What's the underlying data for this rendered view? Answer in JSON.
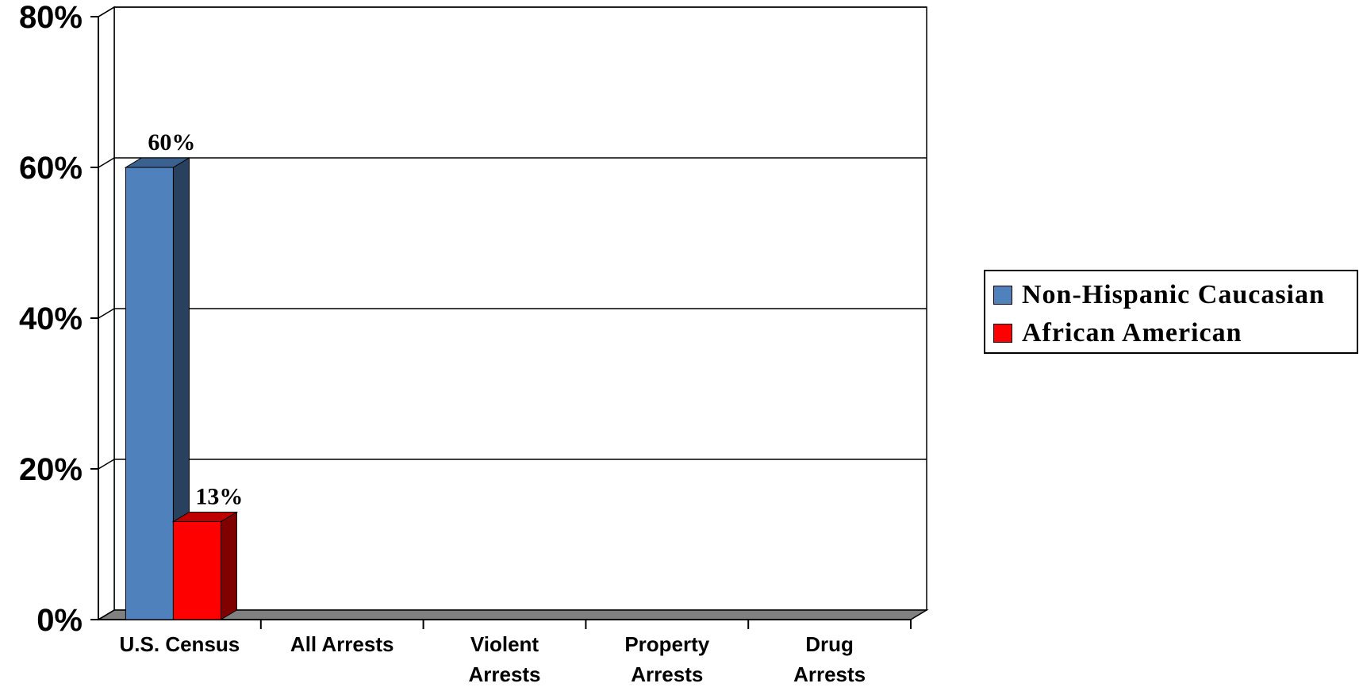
{
  "chart_data": {
    "type": "bar",
    "title": "",
    "xlabel": "",
    "ylabel": "",
    "ylim": [
      0,
      80
    ],
    "y_ticks": [
      "0%",
      "20%",
      "40%",
      "60%",
      "80%"
    ],
    "y_tick_values": [
      0,
      20,
      40,
      60,
      80
    ],
    "categories": [
      [
        "U.S. Census"
      ],
      [
        "All Arrests"
      ],
      [
        "Violent",
        "Arrests"
      ],
      [
        "Property",
        "Arrests"
      ],
      [
        "Drug",
        "Arrests"
      ]
    ],
    "series": [
      {
        "name": "Non-Hispanic Caucasian",
        "color": "#4F81BD",
        "values": [
          60,
          null,
          null,
          null,
          null
        ],
        "labels": [
          "60%",
          null,
          null,
          null,
          null
        ]
      },
      {
        "name": "African American",
        "color": "#FF0000",
        "values": [
          13,
          null,
          null,
          null,
          null
        ],
        "labels": [
          "13%",
          null,
          null,
          null,
          null
        ]
      }
    ],
    "grid": true,
    "legend_position": "right"
  }
}
